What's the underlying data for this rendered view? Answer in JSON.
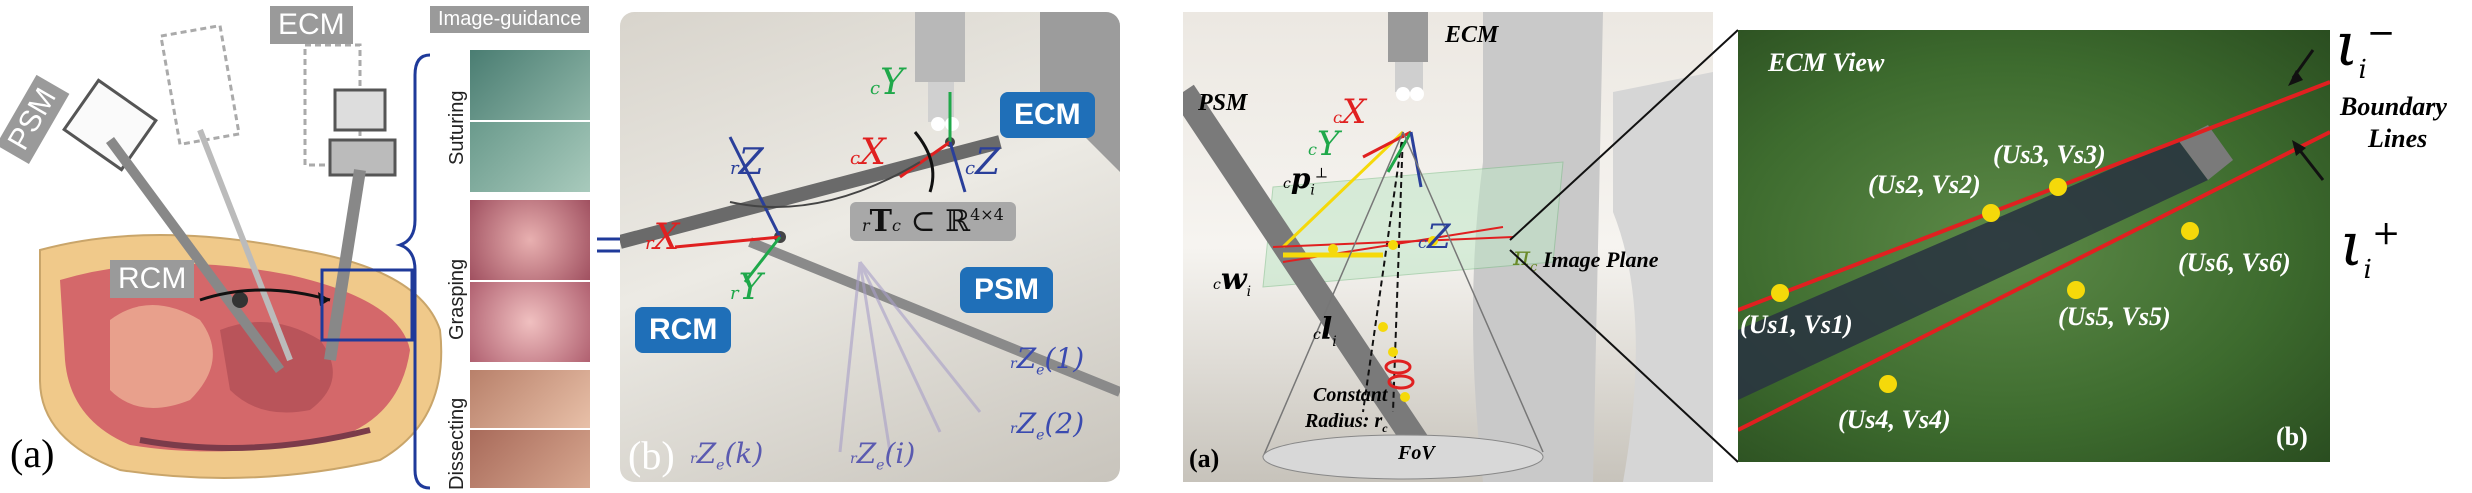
{
  "fig1": {
    "tag_ecm": "ECM",
    "tag_psm": "PSM",
    "tag_rcm": "RCM",
    "guidance_header": "Image-guidance",
    "tasks": [
      "Suturing",
      "Grasping",
      "Dissecting"
    ],
    "letter": "(a)"
  },
  "fig2": {
    "tag_ecm": "ECM",
    "tag_psm": "PSM",
    "tag_rcm": "RCM",
    "axis_cY": "Y",
    "axis_cX": "X",
    "axis_cZ": "Z",
    "axis_rZ": "Z",
    "axis_rX": "X",
    "axis_rY": "Y",
    "transform_label": "T",
    "transform_set": " ⊂ ℝ",
    "transform_dim": "4×4",
    "ze1": "(1)",
    "ze2": "(2)",
    "zek": "(k)",
    "zei": "(i)",
    "letter": "(b)"
  },
  "fig3": {
    "ecm": "ECM",
    "psm": "PSM",
    "cX": "X",
    "cY": "Y",
    "cZ": "Z",
    "p_perp": "p",
    "w_i": "w",
    "l_i": "l",
    "pi": "π",
    "image_plane": "Image Plane",
    "constant": "Constant",
    "radius": "Radius: r",
    "fov": "FoV",
    "letter": "(a)"
  },
  "fig4": {
    "title": "ECM View",
    "boundary1": "Boundary",
    "boundary2": "Lines",
    "l_minus": "ι",
    "l_plus": "ι",
    "points": [
      {
        "label": "(Us1, Vs1)"
      },
      {
        "label": "(Us2, Vs2)"
      },
      {
        "label": "(Us3, Vs3)"
      },
      {
        "label": "(Us4, Vs4)"
      },
      {
        "label": "(Us5, Vs5)"
      },
      {
        "label": "(Us6, Vs6)"
      }
    ],
    "letter": "(b)"
  },
  "colors": {
    "red": "#e02020",
    "green": "#1fa84a",
    "blue": "#2a3f9a",
    "yellow": "#f5d90a",
    "tag_blue": "#1f6fb8",
    "board_green": "#3d6b2e"
  }
}
